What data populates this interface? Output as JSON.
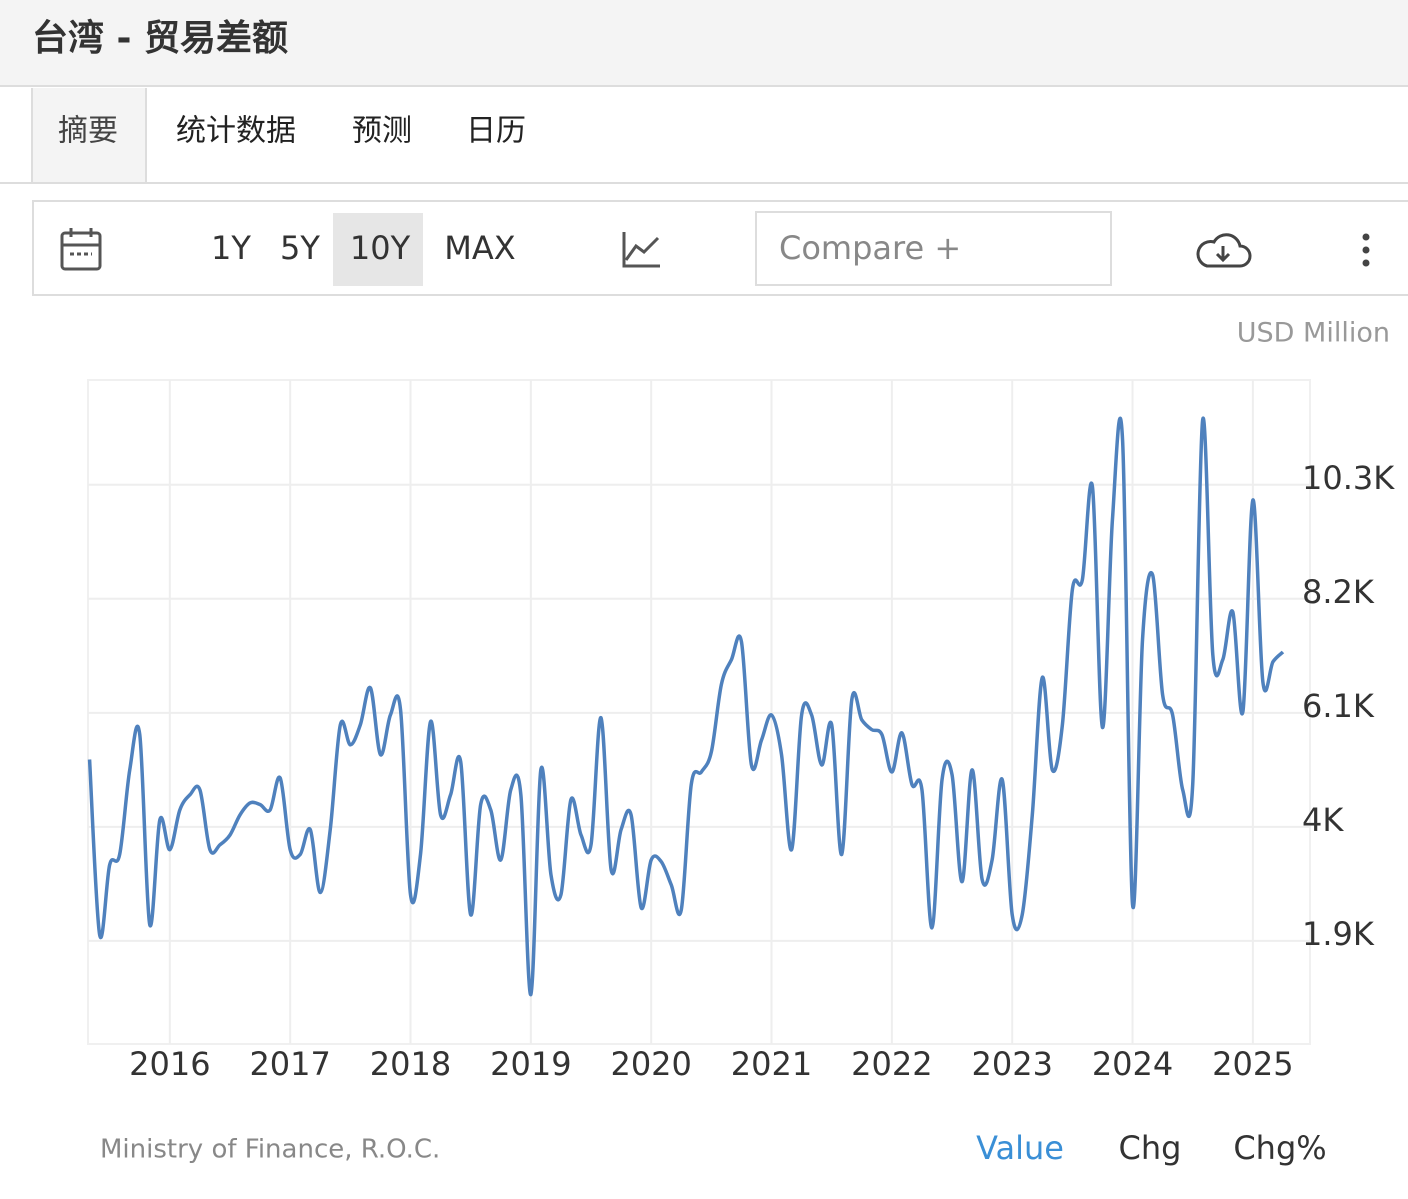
{
  "header": {
    "title": "台湾 - 贸易差额"
  },
  "tabs": [
    "摘要",
    "统计数据",
    "预测",
    "日历"
  ],
  "toolbar": {
    "ranges": [
      "1Y",
      "5Y",
      "10Y",
      "MAX"
    ],
    "compare": "Compare +"
  },
  "chart_data": {
    "type": "line",
    "unit": "USD Million",
    "color": "#4f81bd",
    "x": [
      2015.333,
      2015.417,
      2015.5,
      2015.583,
      2015.667,
      2015.75,
      2015.833,
      2015.917,
      2016,
      2016.083,
      2016.167,
      2016.25,
      2016.333,
      2016.417,
      2016.5,
      2016.583,
      2016.667,
      2016.75,
      2016.833,
      2016.917,
      2017,
      2017.083,
      2017.167,
      2017.25,
      2017.333,
      2017.417,
      2017.5,
      2017.583,
      2017.667,
      2017.75,
      2017.833,
      2017.917,
      2018,
      2018.083,
      2018.167,
      2018.25,
      2018.333,
      2018.417,
      2018.5,
      2018.583,
      2018.667,
      2018.75,
      2018.833,
      2018.917,
      2019,
      2019.083,
      2019.167,
      2019.25,
      2019.333,
      2019.417,
      2019.5,
      2019.583,
      2019.667,
      2019.75,
      2019.833,
      2019.917,
      2020,
      2020.083,
      2020.167,
      2020.25,
      2020.333,
      2020.417,
      2020.5,
      2020.583,
      2020.667,
      2020.75,
      2020.833,
      2020.917,
      2021,
      2021.083,
      2021.167,
      2021.25,
      2021.333,
      2021.417,
      2021.5,
      2021.583,
      2021.667,
      2021.75,
      2021.833,
      2021.917,
      2022,
      2022.083,
      2022.167,
      2022.25,
      2022.333,
      2022.417,
      2022.5,
      2022.583,
      2022.667,
      2022.75,
      2022.833,
      2022.917,
      2023,
      2023.083,
      2023.167,
      2023.25,
      2023.333,
      2023.417,
      2023.5,
      2023.583,
      2023.667,
      2023.75,
      2023.833,
      2023.917,
      2024,
      2024.083,
      2024.167,
      2024.25,
      2024.333,
      2024.417,
      2024.5,
      2024.583,
      2024.667,
      2024.75,
      2024.833,
      2024.917,
      2025,
      2025.083,
      2025.167,
      2025.25
    ],
    "values": [
      5240,
      2010,
      3300,
      3490,
      5050,
      5700,
      2200,
      4130,
      3580,
      4310,
      4590,
      4680,
      3580,
      3670,
      3850,
      4220,
      4440,
      4410,
      4310,
      4900,
      3580,
      3490,
      3950,
      2790,
      3950,
      5880,
      5510,
      5880,
      6560,
      5330,
      6060,
      6160,
      2750,
      3490,
      5940,
      4220,
      4590,
      5200,
      2380,
      4410,
      4310,
      3390,
      4680,
      4590,
      910,
      5050,
      3120,
      2750,
      4500,
      3850,
      3670,
      6010,
      3210,
      3950,
      4220,
      2510,
      3390,
      3360,
      2930,
      2470,
      4780,
      5010,
      5380,
      6620,
      7080,
      7410,
      5140,
      5600,
      6060,
      5330,
      3580,
      6060,
      6060,
      5140,
      5880,
      3490,
      6340,
      5970,
      5790,
      5700,
      5010,
      5730,
      4780,
      4680,
      2140,
      4870,
      4960,
      2990,
      5050,
      3030,
      3390,
      4870,
      2380,
      2380,
      4220,
      6750,
      5050,
      5880,
      8370,
      8550,
      10260,
      5830,
      9660,
      11130,
      2570,
      7450,
      8640,
      6430,
      6060,
      4680,
      4780,
      11500,
      7170,
      7080,
      7960,
      6120,
      10020,
      6670,
      7040,
      7220
    ],
    "xlim": [
      2015.32,
      2025.35
    ],
    "xticks": [
      2016,
      2017,
      2018,
      2019,
      2020,
      2021,
      2022,
      2023,
      2024,
      2025
    ],
    "ylim": [
      0,
      12230
    ],
    "yticks": [
      {
        "value": 1900,
        "label": "1.9K"
      },
      {
        "value": 4000,
        "label": "4K"
      },
      {
        "value": 6100,
        "label": "6.1K"
      },
      {
        "value": 8200,
        "label": "8.2K"
      },
      {
        "value": 10300,
        "label": "10.3K"
      }
    ],
    "grid": true,
    "source": "Ministry of Finance, R.O.C.",
    "modes": [
      "Value",
      "Chg",
      "Chg%"
    ]
  }
}
